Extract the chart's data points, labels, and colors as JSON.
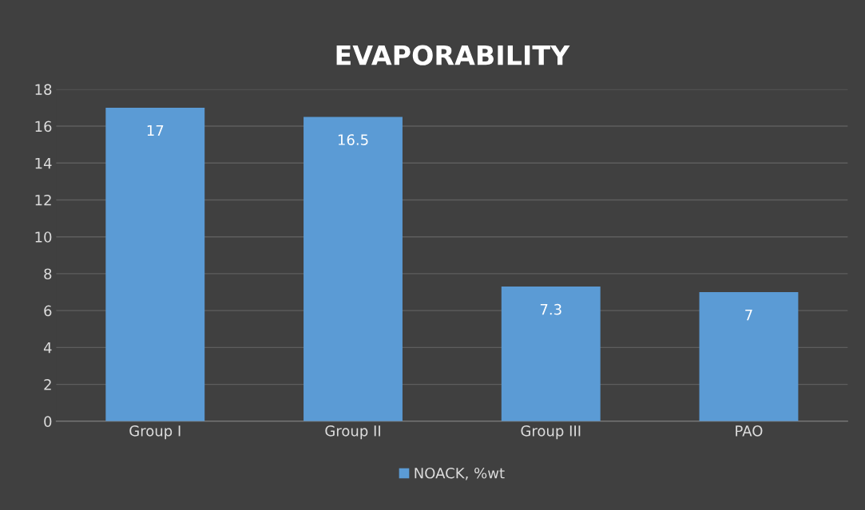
{
  "chart_data": {
    "type": "bar",
    "title": "EVAPORABILITY",
    "categories": [
      "Group I",
      "Group II",
      "Group III",
      "PAO"
    ],
    "series": [
      {
        "name": "NOACK, %wt",
        "color": "#5b9bd5",
        "values": [
          17,
          16.5,
          7.3,
          7
        ]
      }
    ],
    "ylim": [
      0,
      18
    ],
    "yticks": [
      0,
      2,
      4,
      6,
      8,
      10,
      12,
      14,
      16,
      18
    ],
    "grid": "y",
    "legend": "bottom",
    "data_labels": true
  }
}
